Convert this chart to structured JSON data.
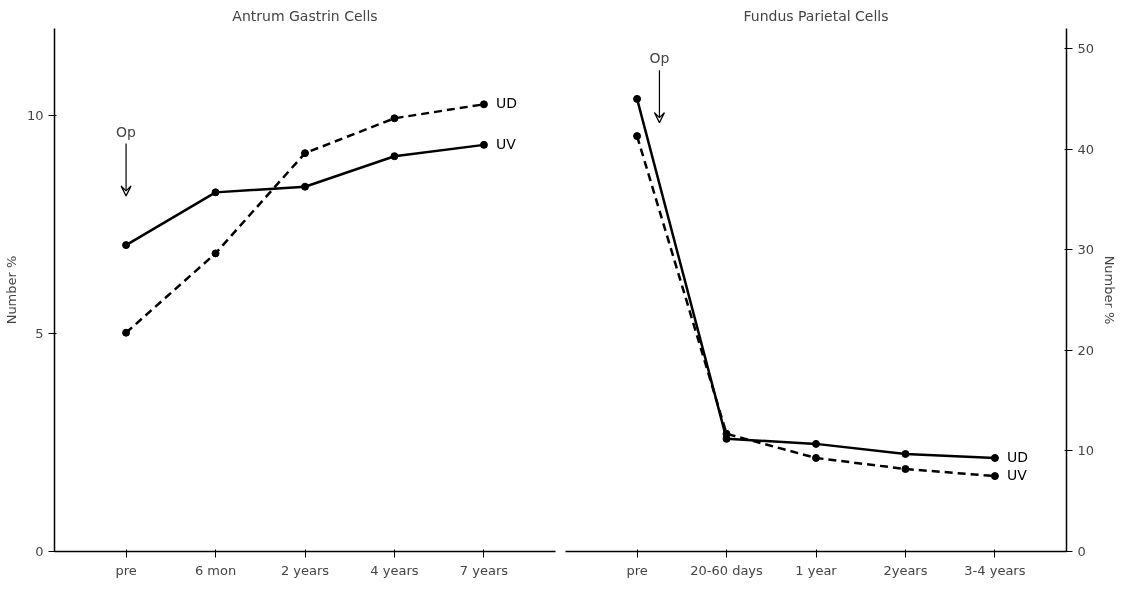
{
  "chart_data": [
    {
      "type": "line",
      "title": "Antrum Gastrin Cells",
      "ylabel": "Number %",
      "categories": [
        "pre",
        "6 mon",
        "2 years",
        "4 years",
        "7 years"
      ],
      "ylim": [
        0,
        12
      ],
      "yticks": [
        0,
        5,
        10
      ],
      "grid": false,
      "marker": "circle",
      "annotations": [
        "Op"
      ],
      "series": [
        {
          "name": "UV",
          "color": "#000000",
          "line_style": "solid",
          "values": [
            7.03,
            8.24,
            8.37,
            9.07,
            9.33
          ]
        },
        {
          "name": "UD",
          "color": "#000000",
          "line_style": "dashed",
          "values": [
            5.02,
            6.84,
            9.14,
            9.94,
            10.26
          ]
        }
      ]
    },
    {
      "type": "line",
      "title": "Fundus Parietal Cells",
      "y2label": "Number %",
      "categories": [
        "pre",
        "20-60 days",
        "1 year",
        "2years",
        "3-4 years"
      ],
      "y2lim": [
        0,
        52
      ],
      "y2ticks": [
        0,
        10,
        20,
        30,
        40,
        50
      ],
      "grid": false,
      "marker": "circle",
      "annotations": [
        "Op"
      ],
      "series": [
        {
          "name": "UD",
          "color": "#000000",
          "line_style": "solid",
          "axis": "y2",
          "values": [
            45,
            11.2,
            10.7,
            9.7,
            9.3
          ]
        },
        {
          "name": "UV",
          "color": "#000000",
          "line_style": "dashed",
          "axis": "y2",
          "values": [
            41.3,
            11.7,
            9.3,
            8.2,
            7.5
          ]
        }
      ]
    }
  ]
}
